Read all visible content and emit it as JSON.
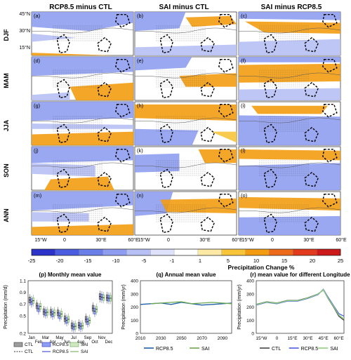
{
  "column_titles": [
    "RCP8.5 minus CTL",
    "SAI minus CTL",
    "SAI minus RCP8.5"
  ],
  "row_labels": [
    "DJF",
    "MAM",
    "JJA",
    "SON",
    "ANN"
  ],
  "panel_letters": [
    "(a)",
    "(b)",
    "(c)",
    "(d)",
    "(e)",
    "(f)",
    "(g)",
    "(h)",
    "(i)",
    "(j)",
    "(k)",
    "(l)",
    "(m)",
    "(n)",
    "(o)"
  ],
  "map_lat_ticks": [
    "45°N",
    "30°N",
    "15°N"
  ],
  "map_lon_ticks": [
    "15°W",
    "0",
    "30°E",
    "60°E"
  ],
  "colorbar": {
    "ticks": [
      "-25",
      "-20",
      "-15",
      "-10",
      "-5",
      "-1",
      "1",
      "5",
      "10",
      "15",
      "20",
      "25"
    ],
    "label": "Precipitation Change %",
    "colors": [
      "#2b33c8",
      "#4a5de0",
      "#6b7fe8",
      "#8f9df0",
      "#b7c0f5",
      "#dde1fa",
      "#ffffff",
      "#fde9a6",
      "#f7c43a",
      "#f39c12",
      "#ee6a1b",
      "#e23a1c",
      "#cc1a1a"
    ]
  },
  "map_panels": [
    {
      "panel": "(a)",
      "wet": [
        "0,180,130,160,0,150"
      ],
      "dry": [
        "0,0,160,0,160,40,90,70,0,55",
        "0,80,70,95,0,110"
      ]
    },
    {
      "panel": "(b)",
      "wet": [
        "80,20,150,15,160,45,90,55"
      ],
      "dry": [
        "0,0,80,0,70,60,0,70",
        "0,130,160,120,160,160,0,160"
      ]
    },
    {
      "panel": "(c)",
      "wet": [
        "10,35,160,40,160,80,40,75"
      ],
      "dry": [
        "0,0,160,0,160,30,0,25",
        "0,110,160,100,160,160,0,160"
      ]
    },
    {
      "panel": "(d)",
      "wet": [
        "60,110,160,95,160,160,70,160"
      ],
      "dry": [
        "0,0,160,0,160,55,0,70",
        "0,140,60,130,60,160,0,160"
      ]
    },
    {
      "panel": "(e)",
      "wet": [
        "70,70,160,60,160,110,80,110"
      ],
      "dry": [
        "0,0,90,0,80,40,0,50"
      ]
    },
    {
      "panel": "(f)",
      "wet": [
        "0,30,160,25,160,90,0,95"
      ],
      "dry": [
        "0,0,160,0,160,20,0,20",
        "0,120,160,115,160,160,0,160"
      ]
    },
    {
      "panel": "(g)",
      "wet": [
        "0,120,160,110,160,160,0,160"
      ],
      "dry": [
        "0,0,160,0,160,60,0,70",
        "0,80,160,85,160,100,0,100"
      ]
    },
    {
      "panel": "(h)",
      "wet": [
        "0,10,160,10,160,70,0,60",
        "120,110,160,110,160,150"
      ],
      "dry": [
        "0,100,100,105,90,160,0,160"
      ]
    },
    {
      "panel": "(i)",
      "wet": [
        "20,15,140,15,130,45,30,45"
      ],
      "dry": [
        "0,50,160,55,160,160,0,160"
      ]
    },
    {
      "panel": "(j)",
      "wet": [
        "30,120,120,110,130,160,20,160"
      ],
      "dry": [
        "0,0,160,0,160,50,0,60",
        "0,60,100,70,100,110,0,100"
      ]
    },
    {
      "panel": "(k)",
      "wet": [
        "100,10,160,10,160,60,110,60"
      ],
      "dry": [
        "0,30,70,25,70,90,0,95"
      ]
    },
    {
      "panel": "(l)",
      "wet": [
        "0,10,160,15,160,50,0,45"
      ],
      "dry": [
        "0,70,160,60,160,160,0,160"
      ]
    },
    {
      "panel": "(m)",
      "wet": [
        "0,130,160,120,160,160,0,160"
      ],
      "dry": [
        "0,0,160,0,160,50,0,70",
        "0,75,90,80,90,110,0,110"
      ]
    },
    {
      "panel": "(n)",
      "wet": [
        "40,30,160,25,160,80,50,75"
      ],
      "dry": [
        "0,0,60,0,50,80,0,90"
      ]
    },
    {
      "panel": "(o)",
      "wet": [
        "0,20,160,25,160,70,0,60"
      ],
      "dry": [
        "0,95,160,90,160,160,0,160"
      ]
    }
  ],
  "chart_data": [
    {
      "type": "box",
      "title": "(p) Monthly mean value",
      "ylabel": "Precipitation (mm/d)",
      "categories": [
        "Jan",
        "Feb",
        "Mar",
        "Apr",
        "May",
        "Jun",
        "Jul",
        "Aug",
        "Sep",
        "Oct",
        "Nov",
        "Dec"
      ],
      "ylim": [
        0.2,
        1.1
      ],
      "yticks": [
        "0.2",
        "0.5",
        "0.7",
        "0.9",
        "1.1"
      ],
      "series": [
        {
          "name": "CTL",
          "median": [
            0.77,
            0.67,
            0.57,
            0.56,
            0.55,
            0.45,
            0.33,
            0.34,
            0.44,
            0.63,
            0.83,
            0.81
          ]
        },
        {
          "name": "RCP8.5",
          "median": [
            0.74,
            0.62,
            0.55,
            0.53,
            0.5,
            0.42,
            0.31,
            0.32,
            0.4,
            0.58,
            0.82,
            0.8
          ]
        },
        {
          "name": "SAI",
          "median": [
            0.76,
            0.66,
            0.56,
            0.55,
            0.53,
            0.44,
            0.32,
            0.33,
            0.42,
            0.61,
            0.81,
            0.8
          ]
        }
      ],
      "legend": [
        "CTL",
        "RCP8.5",
        "SAI",
        "CTL",
        "RCP8.5",
        "SAI"
      ]
    },
    {
      "type": "line",
      "title": "(q) Annual mean value",
      "ylabel": "Precipitation (mm/yr)",
      "xlim": [
        2010,
        2099
      ],
      "xticks": [
        "2010",
        "2030",
        "2050",
        "2070",
        "2090"
      ],
      "ylim": [
        0,
        400
      ],
      "yticks": [
        "0",
        "100",
        "200",
        "300",
        "400"
      ],
      "series": [
        {
          "name": "RCP8.5",
          "color": "#1f5fa8",
          "x": [
            2010,
            2020,
            2030,
            2040,
            2050,
            2060,
            2070,
            2080,
            2090,
            2099
          ],
          "y": [
            220,
            225,
            230,
            220,
            235,
            225,
            215,
            220,
            225,
            230
          ]
        },
        {
          "name": "SAI",
          "color": "#6aa84f",
          "x": [
            2020,
            2030,
            2040,
            2050,
            2060,
            2070,
            2080,
            2090,
            2099
          ],
          "y": [
            225,
            230,
            235,
            240,
            225,
            230,
            235,
            230,
            225
          ]
        }
      ]
    },
    {
      "type": "line",
      "title": "(r) mean value for different Longitude",
      "ylabel": "Precipitation (mm/yr)",
      "xticks": [
        "15°W",
        "0",
        "15°E",
        "30°E",
        "45°E",
        "60°E"
      ],
      "xlim": [
        -20,
        65
      ],
      "ylim": [
        0,
        400
      ],
      "yticks": [
        "0",
        "100",
        "200",
        "300",
        "400"
      ],
      "series": [
        {
          "name": "CTL",
          "color": "#444444",
          "x": [
            -20,
            -10,
            0,
            10,
            20,
            30,
            40,
            45,
            50,
            55,
            60,
            65
          ],
          "y": [
            220,
            240,
            230,
            250,
            250,
            270,
            300,
            330,
            260,
            200,
            130,
            100
          ]
        },
        {
          "name": "RCP8.5",
          "color": "#4a5de0",
          "x": [
            -20,
            -10,
            0,
            10,
            20,
            30,
            40,
            45,
            50,
            55,
            60,
            65
          ],
          "y": [
            215,
            235,
            225,
            245,
            245,
            265,
            295,
            335,
            270,
            210,
            150,
            130
          ]
        },
        {
          "name": "SAI",
          "color": "#8cd17d",
          "x": [
            -20,
            -10,
            0,
            10,
            20,
            30,
            40,
            45,
            50,
            55,
            60,
            65
          ],
          "y": [
            218,
            238,
            228,
            248,
            248,
            268,
            298,
            332,
            262,
            205,
            140,
            110
          ]
        }
      ]
    }
  ]
}
